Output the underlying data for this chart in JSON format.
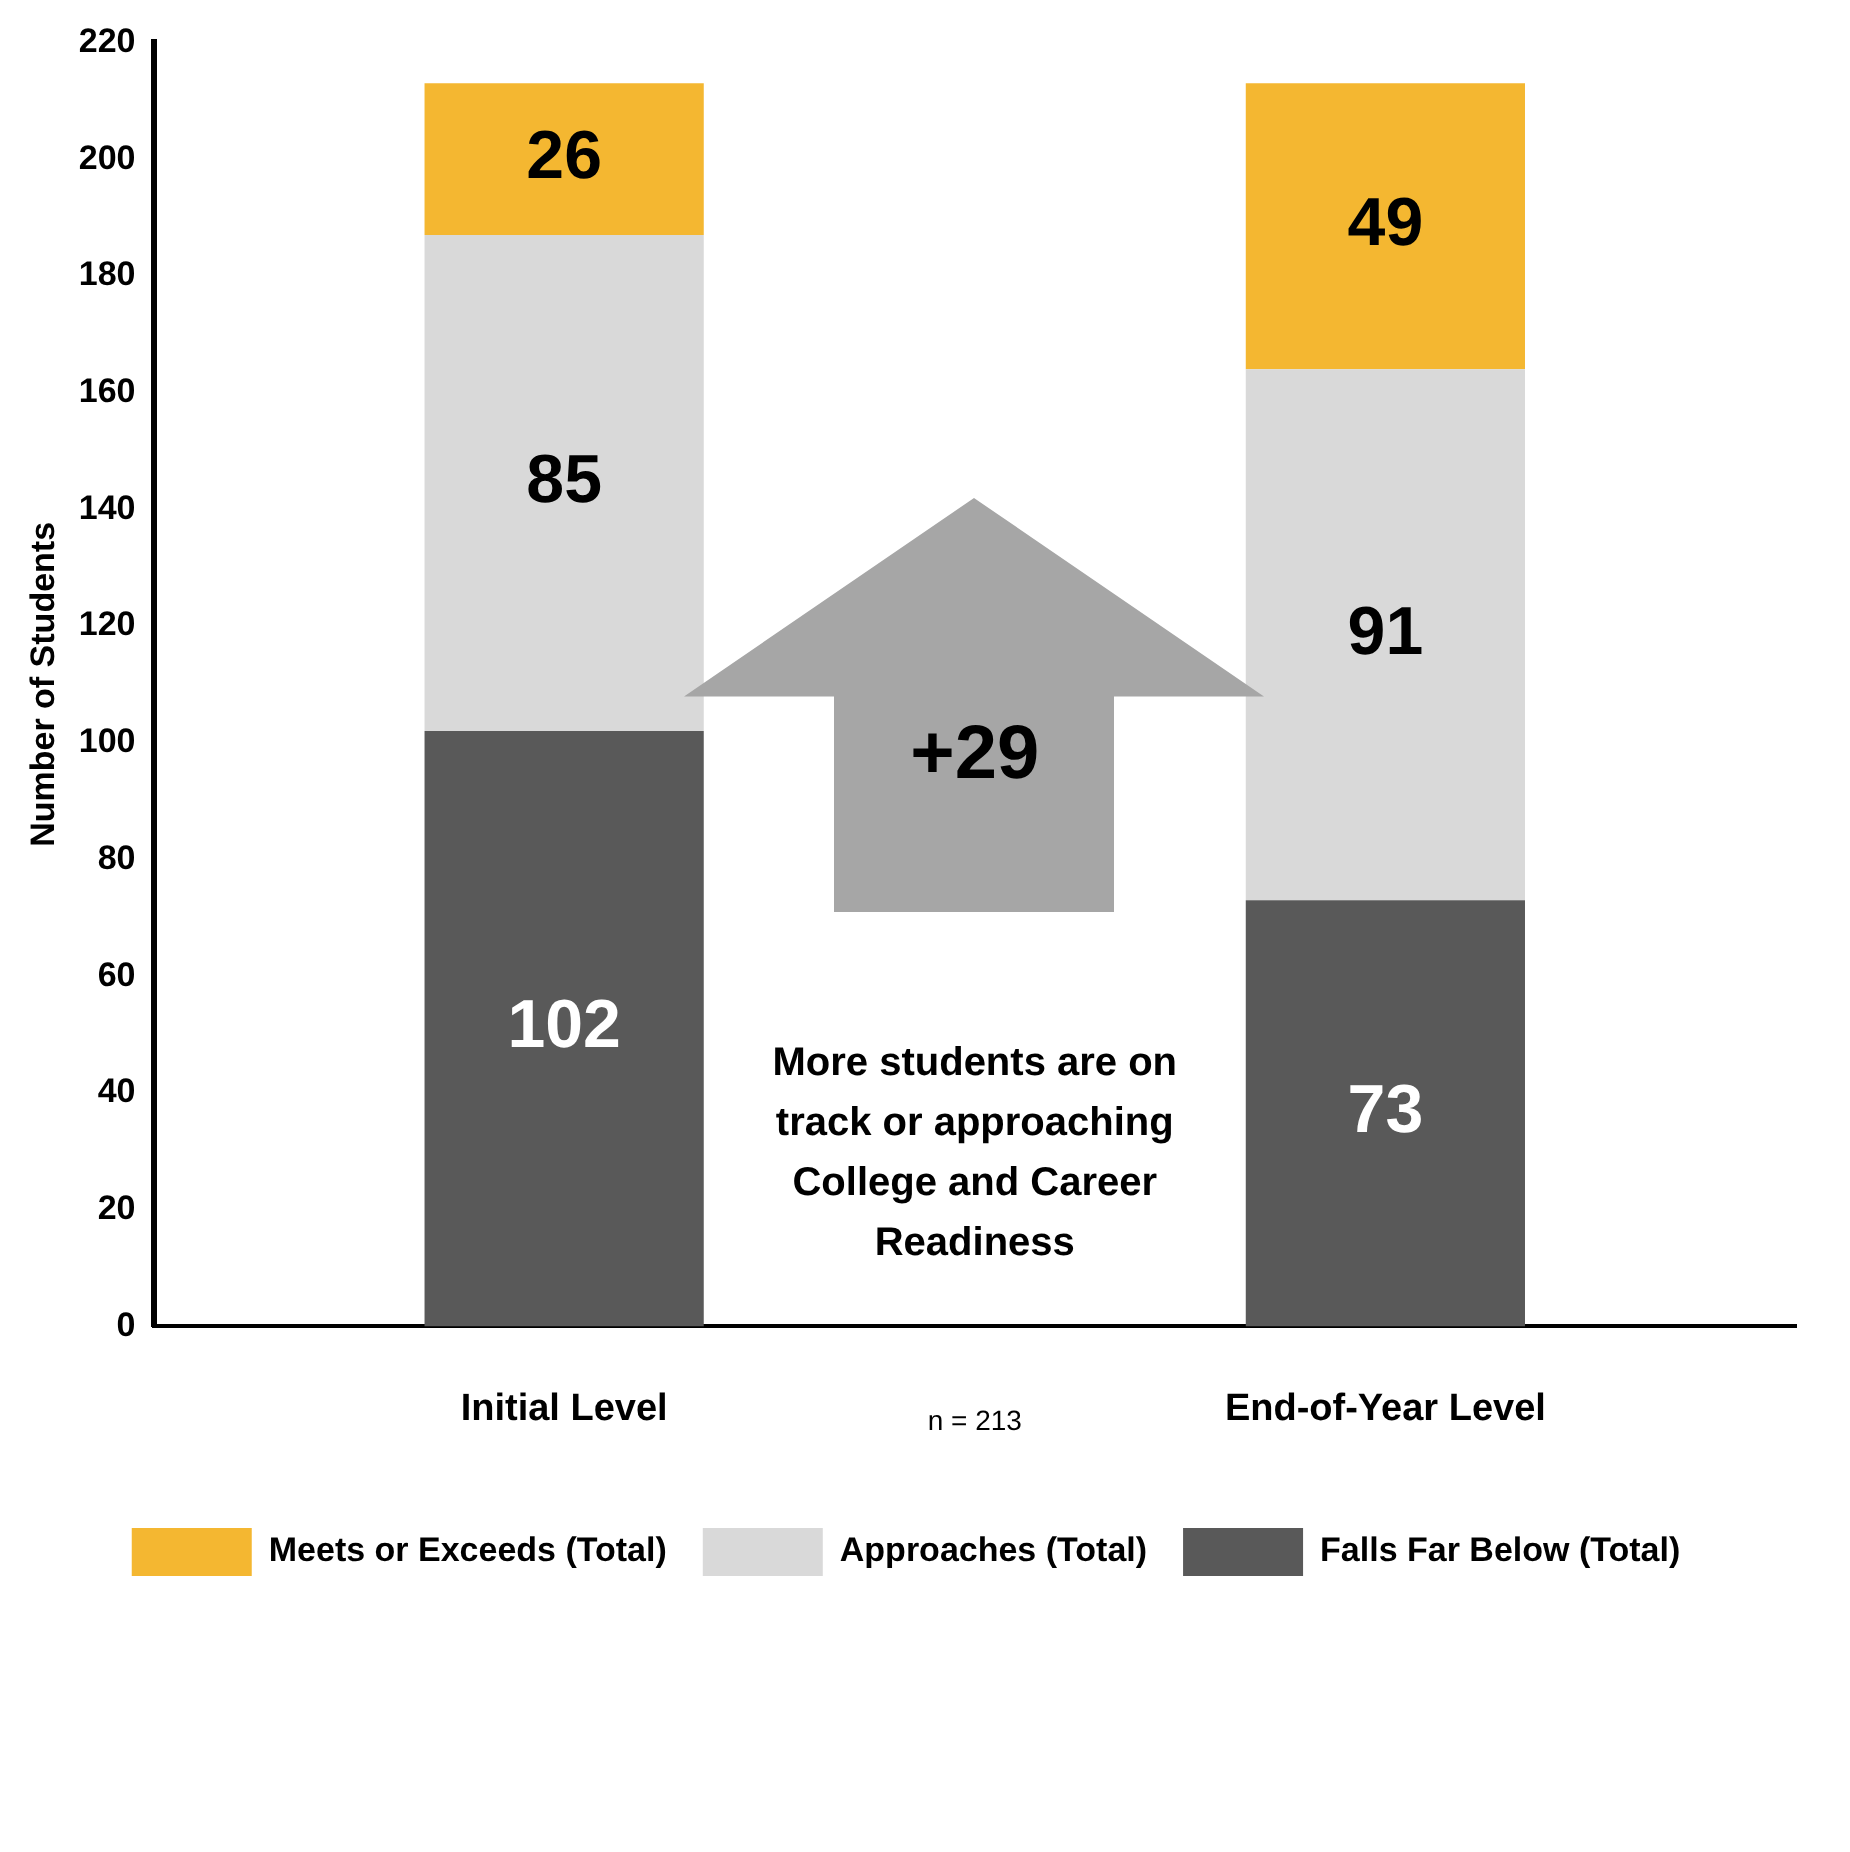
{
  "chart_data": {
    "type": "bar",
    "stacked": true,
    "ylabel": "Number of Students",
    "categories": [
      "Initial Level",
      "End-of-Year Level"
    ],
    "series": [
      {
        "name": "Falls Far Below (Total)",
        "color": "#595959",
        "values": [
          102,
          73
        ]
      },
      {
        "name": "Approaches (Total)",
        "color": "#d9d9d9",
        "values": [
          85,
          91
        ]
      },
      {
        "name": "Meets or Exceeds (Total)",
        "color": "#f4b731",
        "values": [
          26,
          49
        ]
      }
    ],
    "ylim": [
      0,
      220
    ],
    "yticks": [
      0,
      20,
      40,
      60,
      80,
      100,
      120,
      140,
      160,
      180,
      200,
      220
    ],
    "grid": false,
    "legend": "bottom",
    "data_labels": true,
    "annotations": [
      "+29",
      "More students are on track or approaching College and Career Readiness",
      "n = 213"
    ]
  }
}
